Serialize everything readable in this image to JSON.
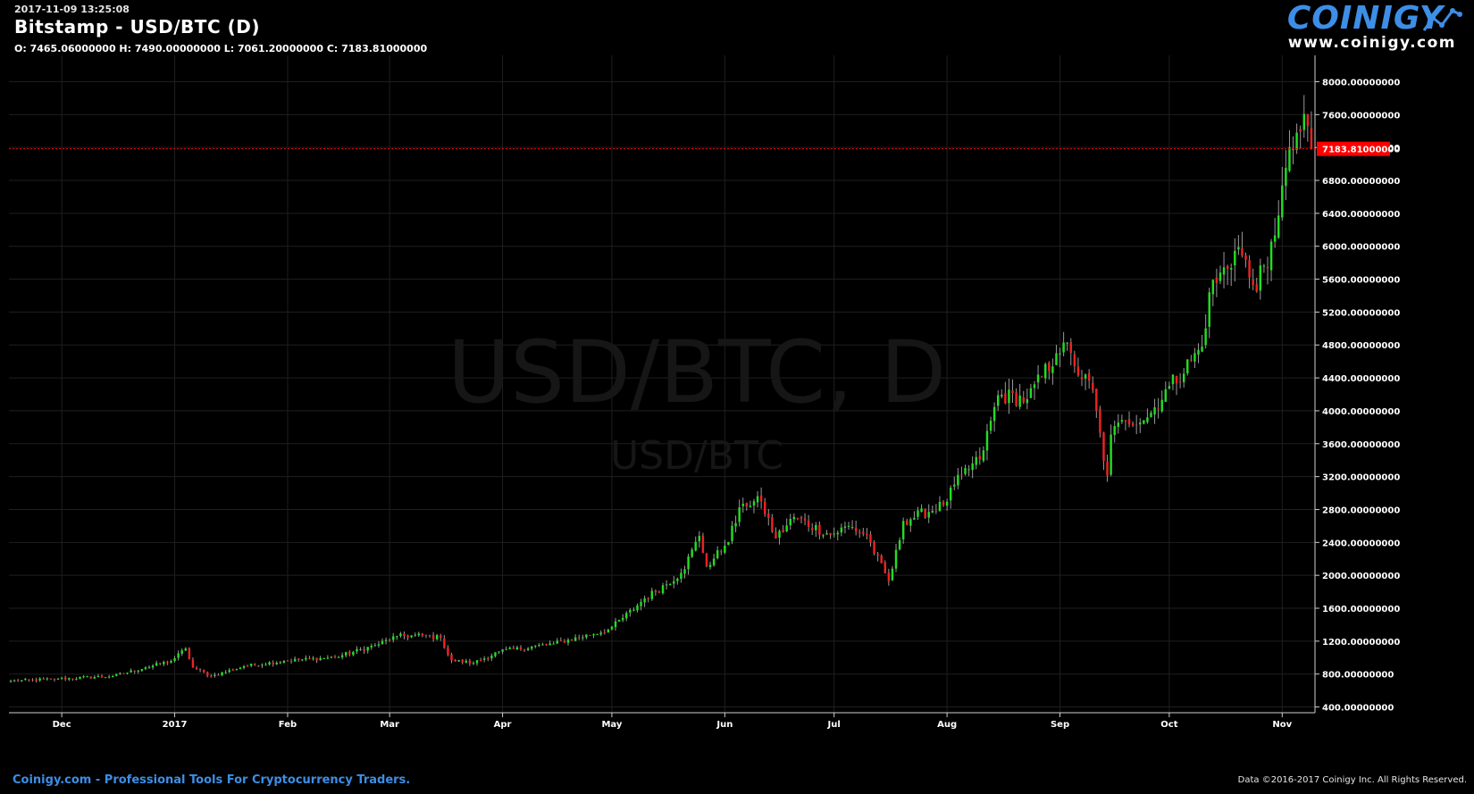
{
  "header": {
    "timestamp": "2017-11-09 13:25:08",
    "title": "Bitstamp - USD/BTC (D)",
    "ohlc": "O: 7465.06000000 H: 7490.00000000 L: 7061.20000000 C: 7183.81000000"
  },
  "logo": {
    "word": "COINIGY",
    "url": "www.coinigy.com"
  },
  "watermark": {
    "main": "USD/BTC, D",
    "sub": "USD/BTC"
  },
  "footer": {
    "left": "Coinigy.com - Professional Tools For Cryptocurrency Traders.",
    "right": "Data ©2016-2017 Coinigy Inc. All Rights Reserved."
  },
  "colors": {
    "background": "#000000",
    "grid": "#1f1f1f",
    "up": "#22dd22",
    "down": "#ee2222",
    "last_price_line": "#ff0000",
    "logo_blue": "#3d8ee6"
  },
  "chart_data": {
    "type": "candlestick",
    "title": "Bitstamp - USD/BTC (D)",
    "xlabel": "",
    "ylabel": "",
    "x_ticks": [
      "Dec",
      "2017",
      "Feb",
      "Mar",
      "Apr",
      "May",
      "Jun",
      "Jul",
      "Aug",
      "Sep",
      "Oct",
      "Nov"
    ],
    "y_ticks": [
      "400.00000000",
      "800.00000000",
      "1200.00000000",
      "1600.00000000",
      "2000.00000000",
      "2400.00000000",
      "2800.00000000",
      "3200.00000000",
      "3600.00000000",
      "4000.00000000",
      "4400.00000000",
      "4800.00000000",
      "5200.00000000",
      "5600.00000000",
      "6000.00000000",
      "6400.00000000",
      "6800.00000000",
      "7200.00000000",
      "7600.00000000",
      "8000.00000000"
    ],
    "ylim": [
      330,
      8320
    ],
    "grid": true,
    "last_price": 7183.81,
    "last_price_label": "7183.81000000",
    "date_range": [
      "2016-11-17",
      "2017-11-09"
    ],
    "keyframes": [
      [
        "2016-11-17",
        715
      ],
      [
        "2016-11-30",
        742
      ],
      [
        "2016-12-15",
        775
      ],
      [
        "2016-12-24",
        880
      ],
      [
        "2016-12-31",
        960
      ],
      [
        "2017-01-04",
        1110
      ],
      [
        "2017-01-06",
        880
      ],
      [
        "2017-01-11",
        775
      ],
      [
        "2017-01-20",
        895
      ],
      [
        "2017-01-31",
        960
      ],
      [
        "2017-02-14",
        1005
      ],
      [
        "2017-02-25",
        1150
      ],
      [
        "2017-03-03",
        1260
      ],
      [
        "2017-03-10",
        1270
      ],
      [
        "2017-03-15",
        1240
      ],
      [
        "2017-03-18",
        965
      ],
      [
        "2017-03-24",
        935
      ],
      [
        "2017-03-31",
        1075
      ],
      [
        "2017-04-15",
        1170
      ],
      [
        "2017-04-30",
        1340
      ],
      [
        "2017-05-10",
        1720
      ],
      [
        "2017-05-20",
        2030
      ],
      [
        "2017-05-25",
        2480
      ],
      [
        "2017-05-27",
        2110
      ],
      [
        "2017-06-01",
        2360
      ],
      [
        "2017-06-06",
        2870
      ],
      [
        "2017-06-11",
        2900
      ],
      [
        "2017-06-15",
        2450
      ],
      [
        "2017-06-20",
        2710
      ],
      [
        "2017-06-30",
        2490
      ],
      [
        "2017-07-05",
        2600
      ],
      [
        "2017-07-10",
        2490
      ],
      [
        "2017-07-16",
        1930
      ],
      [
        "2017-07-20",
        2660
      ],
      [
        "2017-07-31",
        2855
      ],
      [
        "2017-08-05",
        3220
      ],
      [
        "2017-08-10",
        3410
      ],
      [
        "2017-08-15",
        4190
      ],
      [
        "2017-08-23",
        4140
      ],
      [
        "2017-08-31",
        4700
      ],
      [
        "2017-09-02",
        4830
      ],
      [
        "2017-09-05",
        4540
      ],
      [
        "2017-09-10",
        4250
      ],
      [
        "2017-09-14",
        3210
      ],
      [
        "2017-09-15",
        3710
      ],
      [
        "2017-09-19",
        3880
      ],
      [
        "2017-09-25",
        3920
      ],
      [
        "2017-10-01",
        4300
      ],
      [
        "2017-10-10",
        4780
      ],
      [
        "2017-10-12",
        5440
      ],
      [
        "2017-10-20",
        5990
      ],
      [
        "2017-10-24",
        5530
      ],
      [
        "2017-10-28",
        5730
      ],
      [
        "2017-11-01",
        6740
      ],
      [
        "2017-11-05",
        7380
      ],
      [
        "2017-11-08",
        7460
      ],
      [
        "2017-11-09",
        7183.81
      ]
    ]
  }
}
